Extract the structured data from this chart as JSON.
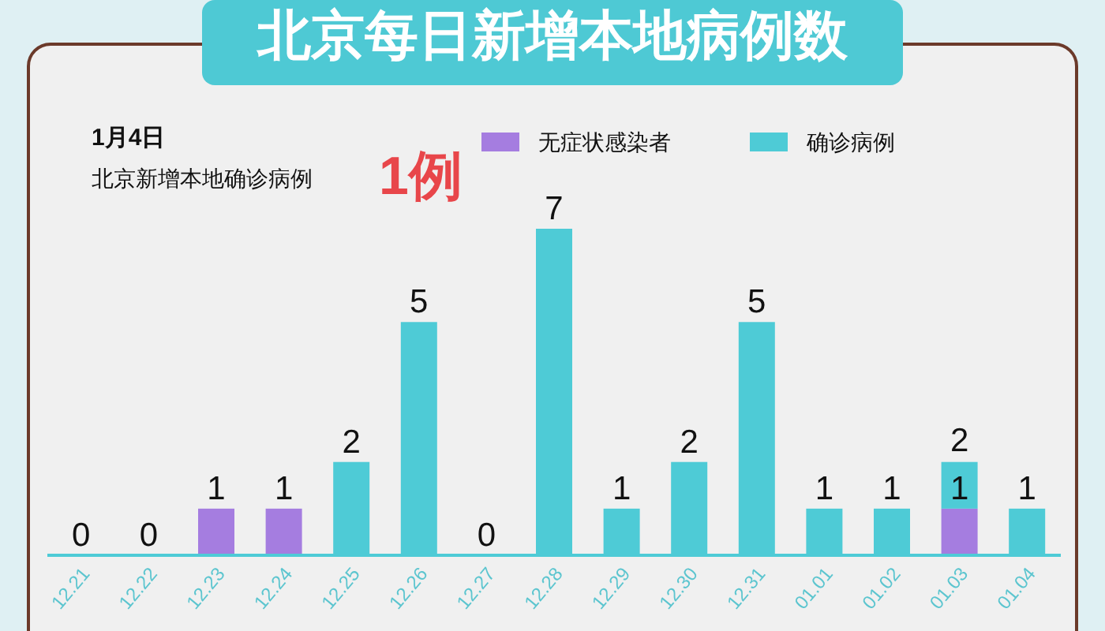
{
  "chart_data": {
    "type": "bar",
    "title": "北京每日新增本地病例数",
    "subtitle": "1月4日",
    "annotations": [
      "北京新增本地确诊病例",
      "1例"
    ],
    "categories": [
      "12.21",
      "12.22",
      "12.23",
      "12.24",
      "12.25",
      "12.26",
      "12.27",
      "12.28",
      "12.29",
      "12.30",
      "12.31",
      "01.01",
      "01.02",
      "01.03",
      "01.04"
    ],
    "stacked": true,
    "legend": "top",
    "series": [
      {
        "name": "无症状感染者",
        "color": "#a57de0",
        "values": [
          null,
          null,
          1,
          1,
          null,
          null,
          null,
          null,
          null,
          null,
          null,
          null,
          null,
          1,
          null
        ],
        "value_labels": [
          null,
          null,
          "1",
          "1",
          null,
          null,
          null,
          null,
          null,
          null,
          null,
          null,
          null,
          "1",
          null
        ]
      },
      {
        "name": "确诊病例",
        "color": "#4ecbd6",
        "values": [
          0,
          0,
          null,
          null,
          2,
          5,
          0,
          7,
          1,
          2,
          5,
          1,
          1,
          1,
          1
        ],
        "value_labels": [
          "0",
          "0",
          null,
          null,
          "2",
          "5",
          "0",
          "7",
          "1",
          "2",
          "5",
          "1",
          "1",
          null,
          "1"
        ]
      }
    ],
    "totals": [
      null,
      null,
      null,
      null,
      null,
      null,
      null,
      null,
      null,
      null,
      null,
      null,
      null,
      "2",
      null
    ]
  }
}
